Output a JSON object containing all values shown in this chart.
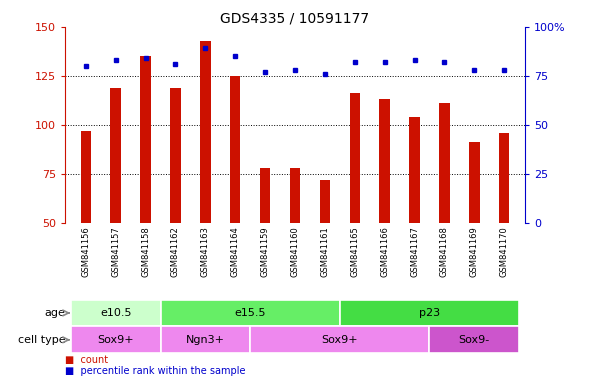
{
  "title": "GDS4335 / 10591177",
  "samples": [
    "GSM841156",
    "GSM841157",
    "GSM841158",
    "GSM841162",
    "GSM841163",
    "GSM841164",
    "GSM841159",
    "GSM841160",
    "GSM841161",
    "GSM841165",
    "GSM841166",
    "GSM841167",
    "GSM841168",
    "GSM841169",
    "GSM841170"
  ],
  "counts": [
    97,
    119,
    135,
    119,
    143,
    125,
    78,
    78,
    72,
    116,
    113,
    104,
    111,
    91,
    96
  ],
  "percentile_ranks": [
    80,
    83,
    84,
    81,
    89,
    85,
    77,
    78,
    76,
    82,
    82,
    83,
    82,
    78,
    78
  ],
  "ylim_left": [
    50,
    150
  ],
  "ylim_right": [
    0,
    100
  ],
  "yticks_left": [
    50,
    75,
    100,
    125,
    150
  ],
  "yticks_right": [
    0,
    25,
    50,
    75,
    100
  ],
  "bar_color": "#cc1100",
  "dot_color": "#0000cc",
  "age_groups": [
    {
      "label": "e10.5",
      "start": 0,
      "end": 3,
      "color": "#ccffcc"
    },
    {
      "label": "e15.5",
      "start": 3,
      "end": 9,
      "color": "#66ee66"
    },
    {
      "label": "p23",
      "start": 9,
      "end": 15,
      "color": "#44dd44"
    }
  ],
  "cell_groups": [
    {
      "label": "Sox9+",
      "start": 0,
      "end": 3,
      "color": "#ee88ee"
    },
    {
      "label": "Ngn3+",
      "start": 3,
      "end": 6,
      "color": "#ee88ee"
    },
    {
      "label": "Sox9+",
      "start": 6,
      "end": 12,
      "color": "#ee88ee"
    },
    {
      "label": "Sox9-",
      "start": 12,
      "end": 15,
      "color": "#cc55cc"
    }
  ],
  "left_axis_color": "#cc1100",
  "right_axis_color": "#0000cc",
  "gray_band_color": "#d0d0d0",
  "tick_fontsize": 8,
  "title_fontsize": 10,
  "label_fontsize": 6,
  "row_fontsize": 8
}
